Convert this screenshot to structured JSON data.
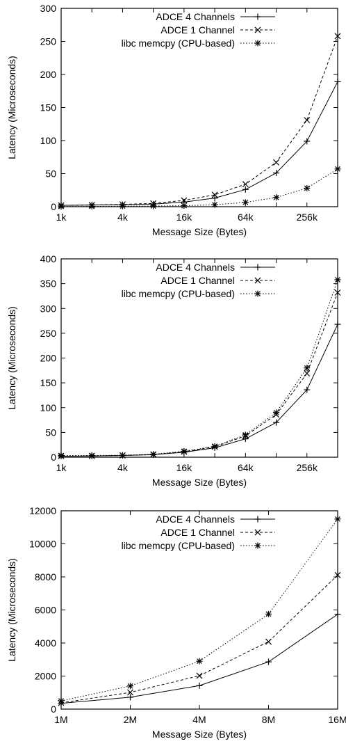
{
  "chart_data": [
    {
      "type": "line",
      "xlabel": "Message Size (Bytes)",
      "ylabel": "Latency (Microseconds)",
      "x_scale": "log2",
      "x": [
        "1k",
        "2k",
        "4k",
        "8k",
        "16k",
        "32k",
        "64k",
        "128k",
        "256k",
        "512k"
      ],
      "x_ticks": [
        "1k",
        "4k",
        "16k",
        "64k",
        "256k"
      ],
      "ylim": [
        0,
        300
      ],
      "y_ticks": [
        "0",
        "50",
        "100",
        "150",
        "200",
        "250",
        "300"
      ],
      "legend_position": "top-left",
      "series": [
        {
          "name": "ADCE 4 Channels",
          "marker": "plus",
          "dash": "solid",
          "values": [
            2,
            2.5,
            3,
            4,
            7,
            13,
            26,
            51,
            99,
            189
          ]
        },
        {
          "name": "ADCE 1 Channel",
          "marker": "cross",
          "dash": "dashed",
          "values": [
            2,
            2.5,
            3.5,
            5,
            9.5,
            18,
            34,
            67,
            131,
            258
          ]
        },
        {
          "name": "libc memcpy (CPU-based)",
          "marker": "star",
          "dash": "dotted",
          "values": [
            0.3,
            0.5,
            0.8,
            1,
            1.5,
            3,
            6.5,
            14,
            28,
            57
          ]
        }
      ]
    },
    {
      "type": "line",
      "xlabel": "Message Size (Bytes)",
      "ylabel": "Latency (Microseconds)",
      "x_scale": "log2",
      "x": [
        "1k",
        "2k",
        "4k",
        "8k",
        "16k",
        "32k",
        "64k",
        "128k",
        "256k",
        "512k"
      ],
      "x_ticks": [
        "1k",
        "4k",
        "16k",
        "64k",
        "256k"
      ],
      "ylim": [
        0,
        400
      ],
      "y_ticks": [
        "0",
        "50",
        "100",
        "150",
        "200",
        "250",
        "300",
        "350",
        "400"
      ],
      "legend_position": "top-left",
      "series": [
        {
          "name": "ADCE 4 Channels",
          "marker": "plus",
          "dash": "solid",
          "values": [
            2,
            2.5,
            3.5,
            5,
            10,
            19,
            37,
            70,
            136,
            268
          ]
        },
        {
          "name": "ADCE 1 Channel",
          "marker": "cross",
          "dash": "dashed",
          "values": [
            2,
            2.5,
            3.5,
            5.5,
            11,
            21,
            43,
            86,
            169,
            332
          ]
        },
        {
          "name": "libc memcpy (CPU-based)",
          "marker": "star",
          "dash": "dotted",
          "values": [
            3.5,
            3.5,
            4,
            6,
            12,
            22,
            45,
            90,
            180,
            358
          ]
        }
      ]
    },
    {
      "type": "line",
      "xlabel": "Message Size (Bytes)",
      "ylabel": "Latency (Microseconds)",
      "x_scale": "log2",
      "x": [
        "1M",
        "2M",
        "4M",
        "8M",
        "16M"
      ],
      "x_ticks": [
        "1M",
        "2M",
        "4M",
        "8M",
        "16M"
      ],
      "ylim": [
        0,
        12000
      ],
      "y_ticks": [
        "0",
        "2000",
        "4000",
        "6000",
        "8000",
        "10000",
        "12000"
      ],
      "legend_position": "top-left",
      "series": [
        {
          "name": "ADCE 4 Channels",
          "marker": "plus",
          "dash": "solid",
          "values": [
            350,
            720,
            1420,
            2860,
            5740
          ]
        },
        {
          "name": "ADCE 1 Channel",
          "marker": "cross",
          "dash": "dashed",
          "values": [
            380,
            1010,
            2020,
            4080,
            8110
          ]
        },
        {
          "name": "libc memcpy (CPU-based)",
          "marker": "star",
          "dash": "dotted",
          "values": [
            500,
            1400,
            2900,
            5750,
            11500
          ]
        }
      ]
    }
  ]
}
